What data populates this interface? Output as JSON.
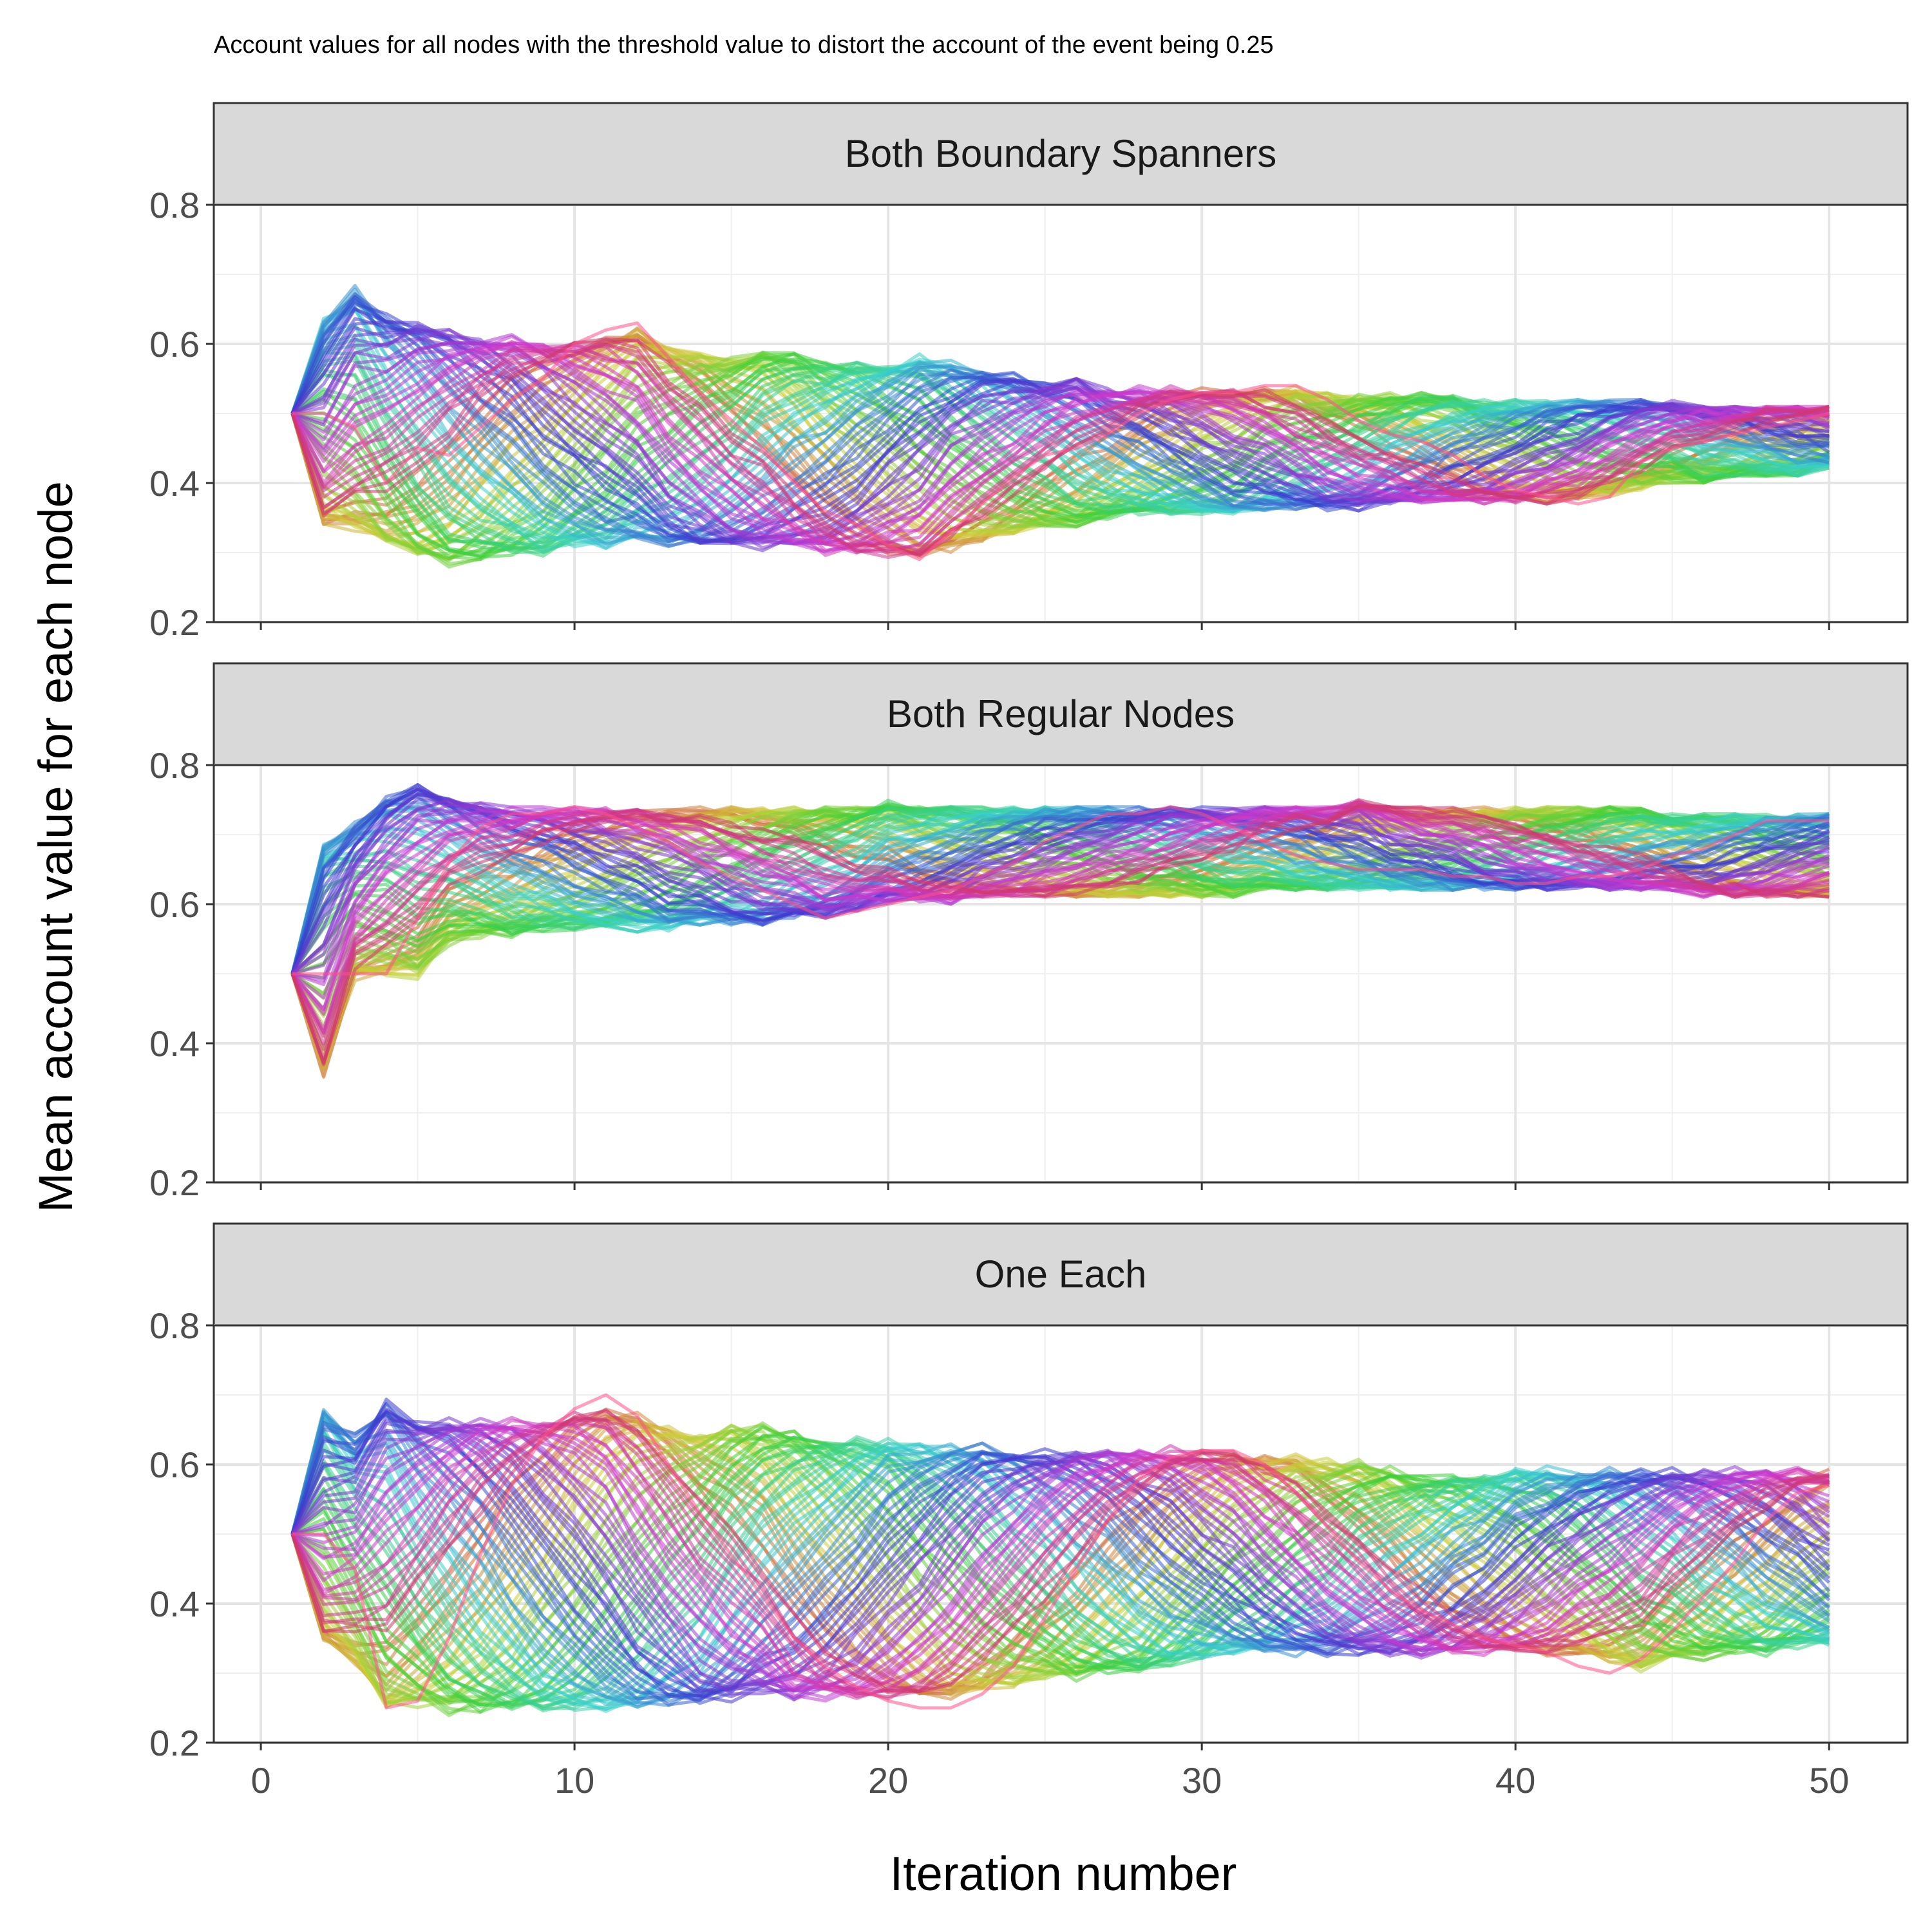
{
  "chart_data": {
    "type": "line",
    "subtitle": "Account values for all nodes with the threshold value to distort the account of the event being 0.25",
    "xlabel": "Iteration number",
    "ylabel": "Mean account value for each node",
    "xlim": [
      -1.5,
      52.5
    ],
    "ylim": [
      0.2,
      0.8
    ],
    "x_ticks": [
      "0",
      "10",
      "20",
      "30",
      "40",
      "50"
    ],
    "y_ticks": [
      "0.2",
      "0.4",
      "0.6",
      "0.8"
    ],
    "x_tick_values": [
      0,
      10,
      20,
      30,
      40,
      50
    ],
    "y_tick_values": [
      0.2,
      0.4,
      0.6,
      0.8
    ],
    "x_start": 1,
    "x_end": 50,
    "series_count": 90,
    "color_scheme": "hue palette (orange, olive, green, teal, blue, purple, pink)",
    "grid": true,
    "legend": "none",
    "panels": [
      {
        "strip": "Both Boundary Spanners",
        "envelope_upper": [
          0.5,
          0.64,
          0.69,
          0.65,
          0.64,
          0.63,
          0.62,
          0.62,
          0.61,
          0.61,
          0.62,
          0.63,
          0.61,
          0.6,
          0.59,
          0.6,
          0.59,
          0.58,
          0.58,
          0.58,
          0.59,
          0.58,
          0.57,
          0.56,
          0.55,
          0.55,
          0.54,
          0.54,
          0.54,
          0.54,
          0.54,
          0.54,
          0.54,
          0.53,
          0.53,
          0.53,
          0.53,
          0.53,
          0.52,
          0.52,
          0.52,
          0.52,
          0.52,
          0.52,
          0.52,
          0.51,
          0.51,
          0.51,
          0.51,
          0.51
        ],
        "envelope_lower": [
          0.37,
          0.33,
          0.32,
          0.3,
          0.28,
          0.27,
          0.28,
          0.29,
          0.29,
          0.3,
          0.3,
          0.31,
          0.3,
          0.3,
          0.3,
          0.3,
          0.3,
          0.29,
          0.29,
          0.29,
          0.28,
          0.3,
          0.31,
          0.32,
          0.33,
          0.33,
          0.34,
          0.35,
          0.35,
          0.35,
          0.35,
          0.36,
          0.36,
          0.36,
          0.36,
          0.37,
          0.37,
          0.37,
          0.37,
          0.37,
          0.37,
          0.37,
          0.38,
          0.39,
          0.4,
          0.4,
          0.41,
          0.41,
          0.41,
          0.42
        ],
        "highlight": [
          0.5,
          0.5,
          0.48,
          0.4,
          0.45,
          0.44,
          0.48,
          0.52,
          0.55,
          0.6,
          0.62,
          0.63,
          0.58,
          0.53,
          0.49,
          0.45,
          0.4,
          0.36,
          0.34,
          0.31,
          0.29,
          0.33,
          0.37,
          0.41,
          0.44,
          0.45,
          0.47,
          0.5,
          0.52,
          0.53,
          0.53,
          0.54,
          0.54,
          0.52,
          0.49,
          0.47,
          0.46,
          0.44,
          0.41,
          0.39,
          0.38,
          0.37,
          0.38,
          0.43,
          0.45,
          0.46,
          0.47,
          0.48,
          0.49,
          0.5
        ],
        "period": 20,
        "end_spread": [
          0.42,
          0.5
        ]
      },
      {
        "strip": "Both Regular Nodes",
        "envelope_upper": [
          0.5,
          0.7,
          0.72,
          0.76,
          0.78,
          0.76,
          0.75,
          0.74,
          0.74,
          0.74,
          0.74,
          0.74,
          0.74,
          0.74,
          0.74,
          0.74,
          0.74,
          0.74,
          0.74,
          0.75,
          0.74,
          0.74,
          0.74,
          0.74,
          0.74,
          0.74,
          0.74,
          0.74,
          0.74,
          0.74,
          0.74,
          0.74,
          0.74,
          0.74,
          0.75,
          0.74,
          0.74,
          0.74,
          0.74,
          0.74,
          0.74,
          0.74,
          0.74,
          0.74,
          0.73,
          0.73,
          0.73,
          0.73,
          0.73,
          0.73
        ],
        "envelope_lower": [
          0.34,
          0.34,
          0.49,
          0.49,
          0.49,
          0.54,
          0.55,
          0.55,
          0.56,
          0.56,
          0.56,
          0.56,
          0.56,
          0.57,
          0.57,
          0.57,
          0.58,
          0.58,
          0.59,
          0.6,
          0.6,
          0.6,
          0.61,
          0.61,
          0.61,
          0.61,
          0.61,
          0.61,
          0.61,
          0.61,
          0.61,
          0.62,
          0.62,
          0.62,
          0.62,
          0.62,
          0.62,
          0.62,
          0.62,
          0.62,
          0.62,
          0.62,
          0.62,
          0.62,
          0.62,
          0.61,
          0.61,
          0.61,
          0.61,
          0.61
        ],
        "highlight": [
          0.5,
          0.5,
          0.5,
          0.5,
          0.58,
          0.66,
          0.71,
          0.73,
          0.73,
          0.74,
          0.73,
          0.71,
          0.69,
          0.66,
          0.64,
          0.62,
          0.6,
          0.58,
          0.59,
          0.6,
          0.61,
          0.62,
          0.64,
          0.66,
          0.69,
          0.71,
          0.73,
          0.73,
          0.74,
          0.73,
          0.71,
          0.69,
          0.67,
          0.66,
          0.65,
          0.65,
          0.65,
          0.64,
          0.64,
          0.63,
          0.63,
          0.64,
          0.64,
          0.65,
          0.67,
          0.68,
          0.7,
          0.72,
          0.72,
          0.72
        ],
        "period": 24,
        "end_spread": [
          0.61,
          0.73
        ]
      },
      {
        "strip": "One Each",
        "envelope_upper": [
          0.5,
          0.69,
          0.65,
          0.71,
          0.68,
          0.68,
          0.68,
          0.68,
          0.68,
          0.69,
          0.7,
          0.69,
          0.67,
          0.66,
          0.67,
          0.67,
          0.66,
          0.65,
          0.65,
          0.65,
          0.64,
          0.64,
          0.64,
          0.63,
          0.63,
          0.63,
          0.63,
          0.63,
          0.63,
          0.63,
          0.63,
          0.62,
          0.62,
          0.61,
          0.61,
          0.6,
          0.59,
          0.59,
          0.59,
          0.6,
          0.6,
          0.6,
          0.6,
          0.6,
          0.6,
          0.6,
          0.6,
          0.6,
          0.6,
          0.6
        ],
        "envelope_lower": [
          0.37,
          0.33,
          0.3,
          0.23,
          0.24,
          0.23,
          0.23,
          0.23,
          0.23,
          0.23,
          0.23,
          0.23,
          0.24,
          0.24,
          0.25,
          0.26,
          0.25,
          0.25,
          0.25,
          0.25,
          0.25,
          0.25,
          0.26,
          0.27,
          0.28,
          0.28,
          0.29,
          0.29,
          0.3,
          0.31,
          0.32,
          0.32,
          0.32,
          0.32,
          0.32,
          0.32,
          0.32,
          0.32,
          0.32,
          0.32,
          0.32,
          0.32,
          0.31,
          0.3,
          0.31,
          0.31,
          0.32,
          0.32,
          0.33,
          0.33
        ],
        "highlight": [
          0.5,
          0.5,
          0.45,
          0.25,
          0.26,
          0.35,
          0.47,
          0.57,
          0.64,
          0.68,
          0.7,
          0.67,
          0.6,
          0.53,
          0.47,
          0.41,
          0.35,
          0.31,
          0.28,
          0.26,
          0.25,
          0.25,
          0.27,
          0.31,
          0.38,
          0.45,
          0.52,
          0.58,
          0.61,
          0.62,
          0.62,
          0.6,
          0.56,
          0.51,
          0.46,
          0.42,
          0.39,
          0.37,
          0.35,
          0.34,
          0.33,
          0.31,
          0.3,
          0.32,
          0.36,
          0.41,
          0.46,
          0.52,
          0.56,
          0.57
        ],
        "period": 20,
        "end_spread": [
          0.33,
          0.6
        ]
      }
    ]
  }
}
